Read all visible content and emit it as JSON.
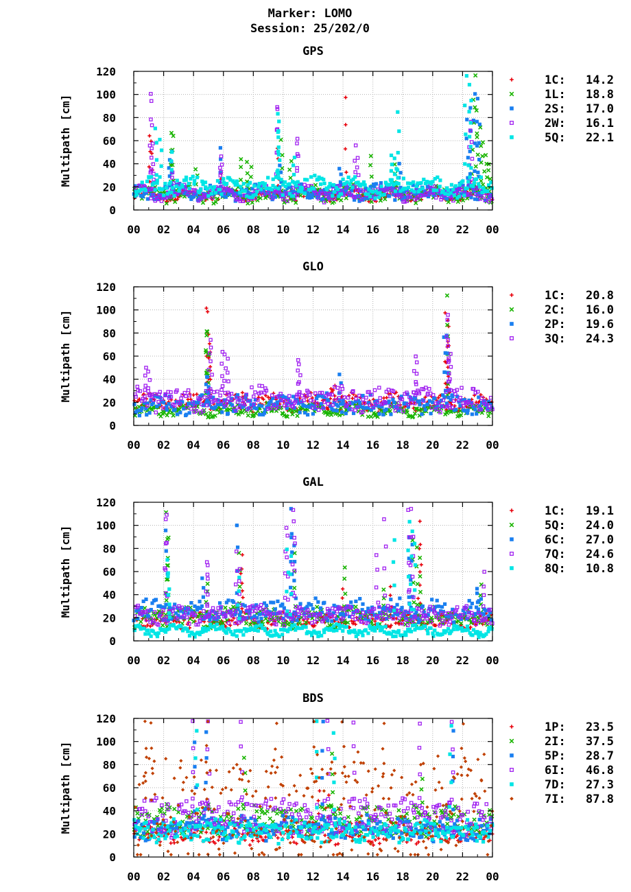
{
  "header": {
    "line1": "Marker: LOMO",
    "line2": "Session: 25/202/0"
  },
  "colors": {
    "red": "#e8000b",
    "green": "#18b400",
    "blue": "#1a7ff0",
    "purple": "#a020f0",
    "cyan": "#00e5e5",
    "brown": "#c04000"
  },
  "chart_data": [
    {
      "type": "scatter",
      "title": "GPS",
      "ylabel": "Multipath [cm]",
      "xlabel": "",
      "x_ticks": [
        "00",
        "02",
        "04",
        "06",
        "08",
        "10",
        "12",
        "14",
        "16",
        "18",
        "20",
        "22",
        "00"
      ],
      "y_ticks": [
        "0",
        "20",
        "40",
        "60",
        "80",
        "100",
        "120"
      ],
      "xlim": [
        0,
        24
      ],
      "ylim": [
        0,
        120
      ],
      "grid": true,
      "legend_position": "right",
      "series": [
        {
          "name": "1C",
          "value": "14.2",
          "marker": "plus",
          "color": "#e8000b",
          "base": 12,
          "spread": 7,
          "spikes": [
            [
              1.1,
              66
            ],
            [
              1.2,
              62
            ],
            [
              5.8,
              32
            ],
            [
              9.6,
              56
            ],
            [
              9.7,
              34
            ],
            [
              14.2,
              98
            ],
            [
              17.5,
              22
            ],
            [
              22.5,
              40
            ]
          ]
        },
        {
          "name": "1L",
          "value": "18.8",
          "marker": "cross",
          "color": "#18b400",
          "base": 12,
          "spread": 12,
          "spikes": [
            [
              2.5,
              68
            ],
            [
              2.6,
              67
            ],
            [
              4.2,
              38
            ],
            [
              7.2,
              46
            ],
            [
              7.6,
              42
            ],
            [
              7.8,
              38
            ],
            [
              9.9,
              61
            ],
            [
              10.5,
              45
            ],
            [
              15.9,
              49
            ],
            [
              17.5,
              40
            ],
            [
              22.7,
              97
            ],
            [
              22.9,
              118
            ],
            [
              23.0,
              88
            ],
            [
              23.2,
              72
            ],
            [
              23.4,
              60
            ],
            [
              23.6,
              50
            ],
            [
              23.8,
              42
            ]
          ]
        },
        {
          "name": "2S",
          "value": "17.0",
          "marker": "square",
          "color": "#1a7ff0",
          "base": 14,
          "spread": 10,
          "spikes": [
            [
              2.5,
              52
            ],
            [
              2.4,
              45
            ],
            [
              5.8,
              54
            ],
            [
              9.8,
              40
            ],
            [
              13.8,
              38
            ],
            [
              17.8,
              42
            ],
            [
              22.3,
              80
            ],
            [
              22.5,
              89
            ],
            [
              22.8,
              102
            ],
            [
              23.0,
              98
            ],
            [
              23.1,
              76
            ]
          ]
        },
        {
          "name": "2W",
          "value": "16.1",
          "marker": "opensquare",
          "color": "#a020f0",
          "base": 13,
          "spread": 10,
          "spikes": [
            [
              1.1,
              103
            ],
            [
              1.15,
              95
            ],
            [
              1.2,
              58
            ],
            [
              1.3,
              40
            ],
            [
              2.6,
              35
            ],
            [
              5.8,
              48
            ],
            [
              5.85,
              40
            ],
            [
              9.6,
              92
            ],
            [
              9.65,
              90
            ],
            [
              10.9,
              64
            ],
            [
              10.95,
              60
            ],
            [
              14.8,
              56
            ],
            [
              15.0,
              48
            ],
            [
              22.5,
              70
            ],
            [
              22.6,
              78
            ]
          ]
        },
        {
          "name": "5Q",
          "value": "22.1",
          "marker": "square",
          "color": "#00e5e5",
          "base": 18,
          "spread": 14,
          "spikes": [
            [
              1.5,
              72
            ],
            [
              1.8,
              63
            ],
            [
              2.5,
              53
            ],
            [
              9.6,
              84
            ],
            [
              9.65,
              78
            ],
            [
              9.7,
              70
            ],
            [
              10.7,
              46
            ],
            [
              17.3,
              50
            ],
            [
              17.5,
              45
            ],
            [
              17.7,
              86
            ],
            [
              22.2,
              117
            ],
            [
              22.4,
              110
            ],
            [
              22.6,
              95
            ]
          ]
        }
      ]
    },
    {
      "type": "scatter",
      "title": "GLO",
      "ylabel": "Multipath [cm]",
      "xlabel": "",
      "x_ticks": [
        "00",
        "02",
        "04",
        "06",
        "08",
        "10",
        "12",
        "14",
        "16",
        "18",
        "20",
        "22",
        "00"
      ],
      "y_ticks": [
        "0",
        "20",
        "40",
        "60",
        "80",
        "100",
        "120"
      ],
      "xlim": [
        0,
        24
      ],
      "ylim": [
        0,
        120
      ],
      "grid": true,
      "legend_position": "right",
      "series": [
        {
          "name": "1C",
          "value": "20.8",
          "marker": "plus",
          "color": "#e8000b",
          "base": 18,
          "spread": 12,
          "spikes": [
            [
              4.9,
              102
            ],
            [
              4.95,
              100
            ],
            [
              5.0,
              72
            ],
            [
              5.05,
              65
            ],
            [
              5.1,
              48
            ],
            [
              7.3,
              30
            ],
            [
              13.2,
              33
            ],
            [
              13.4,
              35
            ],
            [
              20.9,
              98
            ],
            [
              20.95,
              92
            ],
            [
              21.0,
              86
            ],
            [
              21.05,
              70
            ]
          ]
        },
        {
          "name": "2C",
          "value": "16.0",
          "marker": "cross",
          "color": "#18b400",
          "base": 12,
          "spread": 8,
          "spikes": [
            [
              4.85,
              84
            ],
            [
              4.9,
              82
            ],
            [
              4.95,
              80
            ],
            [
              5.0,
              62
            ],
            [
              21.0,
              114
            ],
            [
              21.05,
              80
            ]
          ]
        },
        {
          "name": "2P",
          "value": "19.6",
          "marker": "square",
          "color": "#1a7ff0",
          "base": 16,
          "spread": 14,
          "spikes": [
            [
              4.9,
              45
            ],
            [
              5.0,
              42
            ],
            [
              13.8,
              45
            ],
            [
              20.8,
              79
            ],
            [
              21.0,
              80
            ]
          ]
        },
        {
          "name": "3Q",
          "value": "24.3",
          "marker": "opensquare",
          "color": "#a020f0",
          "base": 20,
          "spread": 18,
          "spikes": [
            [
              0.8,
              52
            ],
            [
              1.0,
              48
            ],
            [
              5.1,
              77
            ],
            [
              5.2,
              70
            ],
            [
              5.9,
              66
            ],
            [
              6.1,
              62
            ],
            [
              6.3,
              58
            ],
            [
              11.0,
              58
            ],
            [
              11.1,
              55
            ],
            [
              18.8,
              60
            ],
            [
              18.9,
              55
            ],
            [
              21.0,
              97
            ],
            [
              21.05,
              93
            ],
            [
              21.1,
              70
            ],
            [
              21.15,
              62
            ]
          ]
        }
      ]
    },
    {
      "type": "scatter",
      "title": "GAL",
      "ylabel": "Multipath [cm]",
      "xlabel": "",
      "x_ticks": [
        "00",
        "02",
        "04",
        "06",
        "08",
        "10",
        "12",
        "14",
        "16",
        "18",
        "20",
        "22",
        "00"
      ],
      "y_ticks": [
        "0",
        "20",
        "40",
        "60",
        "80",
        "100",
        "120"
      ],
      "xlim": [
        0,
        24
      ],
      "ylim": [
        0,
        120
      ],
      "grid": true,
      "legend_position": "right",
      "series": [
        {
          "name": "1C",
          "value": "19.1",
          "marker": "plus",
          "color": "#e8000b",
          "base": 16,
          "spread": 10,
          "spikes": [
            [
              7.2,
              75
            ],
            [
              7.3,
              65
            ],
            [
              14.0,
              46
            ],
            [
              17.2,
              48
            ],
            [
              19.1,
              104
            ],
            [
              19.2,
              85
            ]
          ]
        },
        {
          "name": "5Q",
          "value": "24.0",
          "marker": "cross",
          "color": "#18b400",
          "base": 18,
          "spread": 14,
          "spikes": [
            [
              2.2,
              114
            ],
            [
              2.25,
              90
            ],
            [
              2.3,
              66
            ],
            [
              4.9,
              52
            ],
            [
              7.1,
              78
            ],
            [
              10.8,
              76
            ],
            [
              14.1,
              66
            ],
            [
              16.7,
              47
            ],
            [
              18.7,
              88
            ],
            [
              19.0,
              82
            ],
            [
              19.2,
              72
            ],
            [
              23.2,
              50
            ]
          ]
        },
        {
          "name": "6C",
          "value": "27.0",
          "marker": "square",
          "color": "#1a7ff0",
          "base": 24,
          "spread": 16,
          "spikes": [
            [
              2.2,
              96
            ],
            [
              4.6,
              56
            ],
            [
              6.9,
              100
            ],
            [
              10.5,
              115
            ],
            [
              10.6,
              95
            ],
            [
              10.8,
              85
            ],
            [
              18.4,
              90
            ],
            [
              18.6,
              85
            ],
            [
              23.0,
              48
            ]
          ]
        },
        {
          "name": "7Q",
          "value": "24.6",
          "marker": "opensquare",
          "color": "#a020f0",
          "base": 20,
          "spread": 14,
          "spikes": [
            [
              2.15,
              110
            ],
            [
              2.2,
              106
            ],
            [
              4.9,
              70
            ],
            [
              4.95,
              66
            ],
            [
              6.9,
              78
            ],
            [
              7.1,
              64
            ],
            [
              10.2,
              98
            ],
            [
              10.25,
              92
            ],
            [
              10.7,
              114
            ],
            [
              10.75,
              106
            ],
            [
              16.3,
              77
            ],
            [
              16.8,
              106
            ],
            [
              18.4,
              115
            ],
            [
              18.5,
              117
            ],
            [
              18.7,
              92
            ],
            [
              23.4,
              60
            ]
          ]
        },
        {
          "name": "8Q",
          "value": "10.8",
          "marker": "square",
          "color": "#00e5e5",
          "base": 8,
          "spread": 6,
          "spikes": [
            [
              2.3,
              72
            ],
            [
              2.35,
              60
            ],
            [
              7.0,
              55
            ],
            [
              10.3,
              80
            ],
            [
              10.5,
              75
            ],
            [
              17.4,
              90
            ],
            [
              18.4,
              104
            ],
            [
              18.6,
              95
            ],
            [
              18.8,
              85
            ]
          ]
        }
      ]
    },
    {
      "type": "scatter",
      "title": "BDS",
      "ylabel": "Multipath [cm]",
      "xlabel": "",
      "x_ticks": [
        "00",
        "02",
        "04",
        "06",
        "08",
        "10",
        "12",
        "14",
        "16",
        "18",
        "20",
        "22",
        "00"
      ],
      "y_ticks": [
        "0",
        "20",
        "40",
        "60",
        "80",
        "100",
        "120"
      ],
      "xlim": [
        0,
        24
      ],
      "ylim": [
        0,
        120
      ],
      "grid": true,
      "legend_position": "right",
      "series": [
        {
          "name": "1P",
          "value": "23.5",
          "marker": "plus",
          "color": "#e8000b",
          "base": 18,
          "spread": 14,
          "spikes": [
            [
              12.4,
              60
            ],
            [
              13.0,
              55
            ]
          ]
        },
        {
          "name": "2I",
          "value": "37.5",
          "marker": "cross",
          "color": "#18b400",
          "base": 28,
          "spread": 24,
          "spikes": [
            [
              7.4,
              88
            ],
            [
              13.3,
              90
            ],
            [
              19.3,
              70
            ]
          ]
        },
        {
          "name": "5P",
          "value": "28.7",
          "marker": "square",
          "color": "#1a7ff0",
          "base": 22,
          "spread": 18,
          "spikes": [
            [
              4.1,
              100
            ],
            [
              4.8,
              110
            ],
            [
              12.6,
              118
            ],
            [
              21.4,
              110
            ]
          ]
        },
        {
          "name": "6I",
          "value": "46.8",
          "marker": "opensquare",
          "color": "#a020f0",
          "base": 30,
          "spread": 30,
          "spikes": [
            [
              4.0,
              118
            ],
            [
              5.0,
              118
            ],
            [
              7.2,
              118
            ],
            [
              13.0,
              118
            ],
            [
              14.7,
              118
            ],
            [
              19.1,
              118
            ],
            [
              21.3,
              118
            ]
          ]
        },
        {
          "name": "7D",
          "value": "27.3",
          "marker": "square",
          "color": "#00e5e5",
          "base": 20,
          "spread": 16,
          "spikes": [
            [
              4.2,
              110
            ],
            [
              12.2,
              118
            ],
            [
              13.4,
              110
            ],
            [
              21.2,
              115
            ]
          ]
        },
        {
          "name": "7I",
          "value": "87.8",
          "marker": "diamond",
          "color": "#c04000",
          "base": 30,
          "spread": 90,
          "spikes": [
            [
              0.8,
              118
            ],
            [
              1.2,
              118
            ],
            [
              4.9,
              120
            ],
            [
              9.5,
              118
            ],
            [
              12.0,
              119
            ],
            [
              14.0,
              118
            ],
            [
              16.7,
              118
            ],
            [
              22.0,
              117
            ]
          ]
        }
      ]
    }
  ]
}
